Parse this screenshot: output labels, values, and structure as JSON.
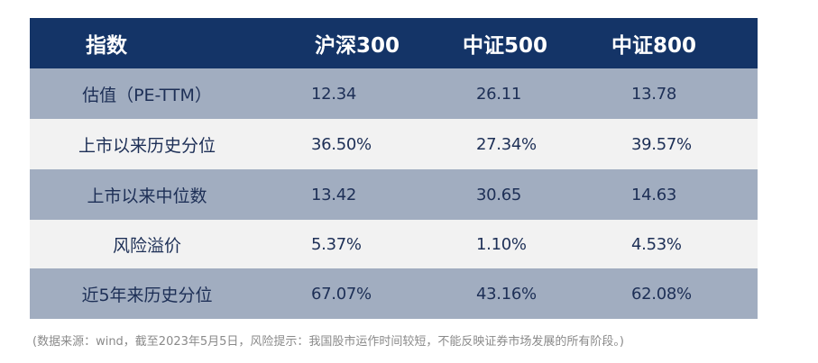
{
  "table": {
    "header": [
      "指数",
      "沪深300",
      "中证500",
      "中证800"
    ],
    "rows": [
      [
        "估值（PE-TTM）",
        "12.34",
        "26.11",
        "13.78"
      ],
      [
        "上市以来历史分位",
        "36.50%",
        "27.34%",
        "39.57%"
      ],
      [
        "上市以来中位数",
        "13.42",
        "30.65",
        "14.63"
      ],
      [
        "风险溢价",
        "5.37%",
        "1.10%",
        "4.53%"
      ],
      [
        "近5年来历史分位",
        "67.07%",
        "43.16%",
        "62.08%"
      ]
    ]
  },
  "footnote": "(数据来源：wind，截至2023年5月5日，风险提示：我国股市运作时间较短，不能反映证券市场发展的所有阶段。)",
  "colors": {
    "header_bg": "#143467",
    "shaded_row_bg": "#a1adc0",
    "light_row_bg": "#f2f2f2",
    "body_text": "#1d2f56",
    "footnote_text": "#8a8a8a"
  }
}
